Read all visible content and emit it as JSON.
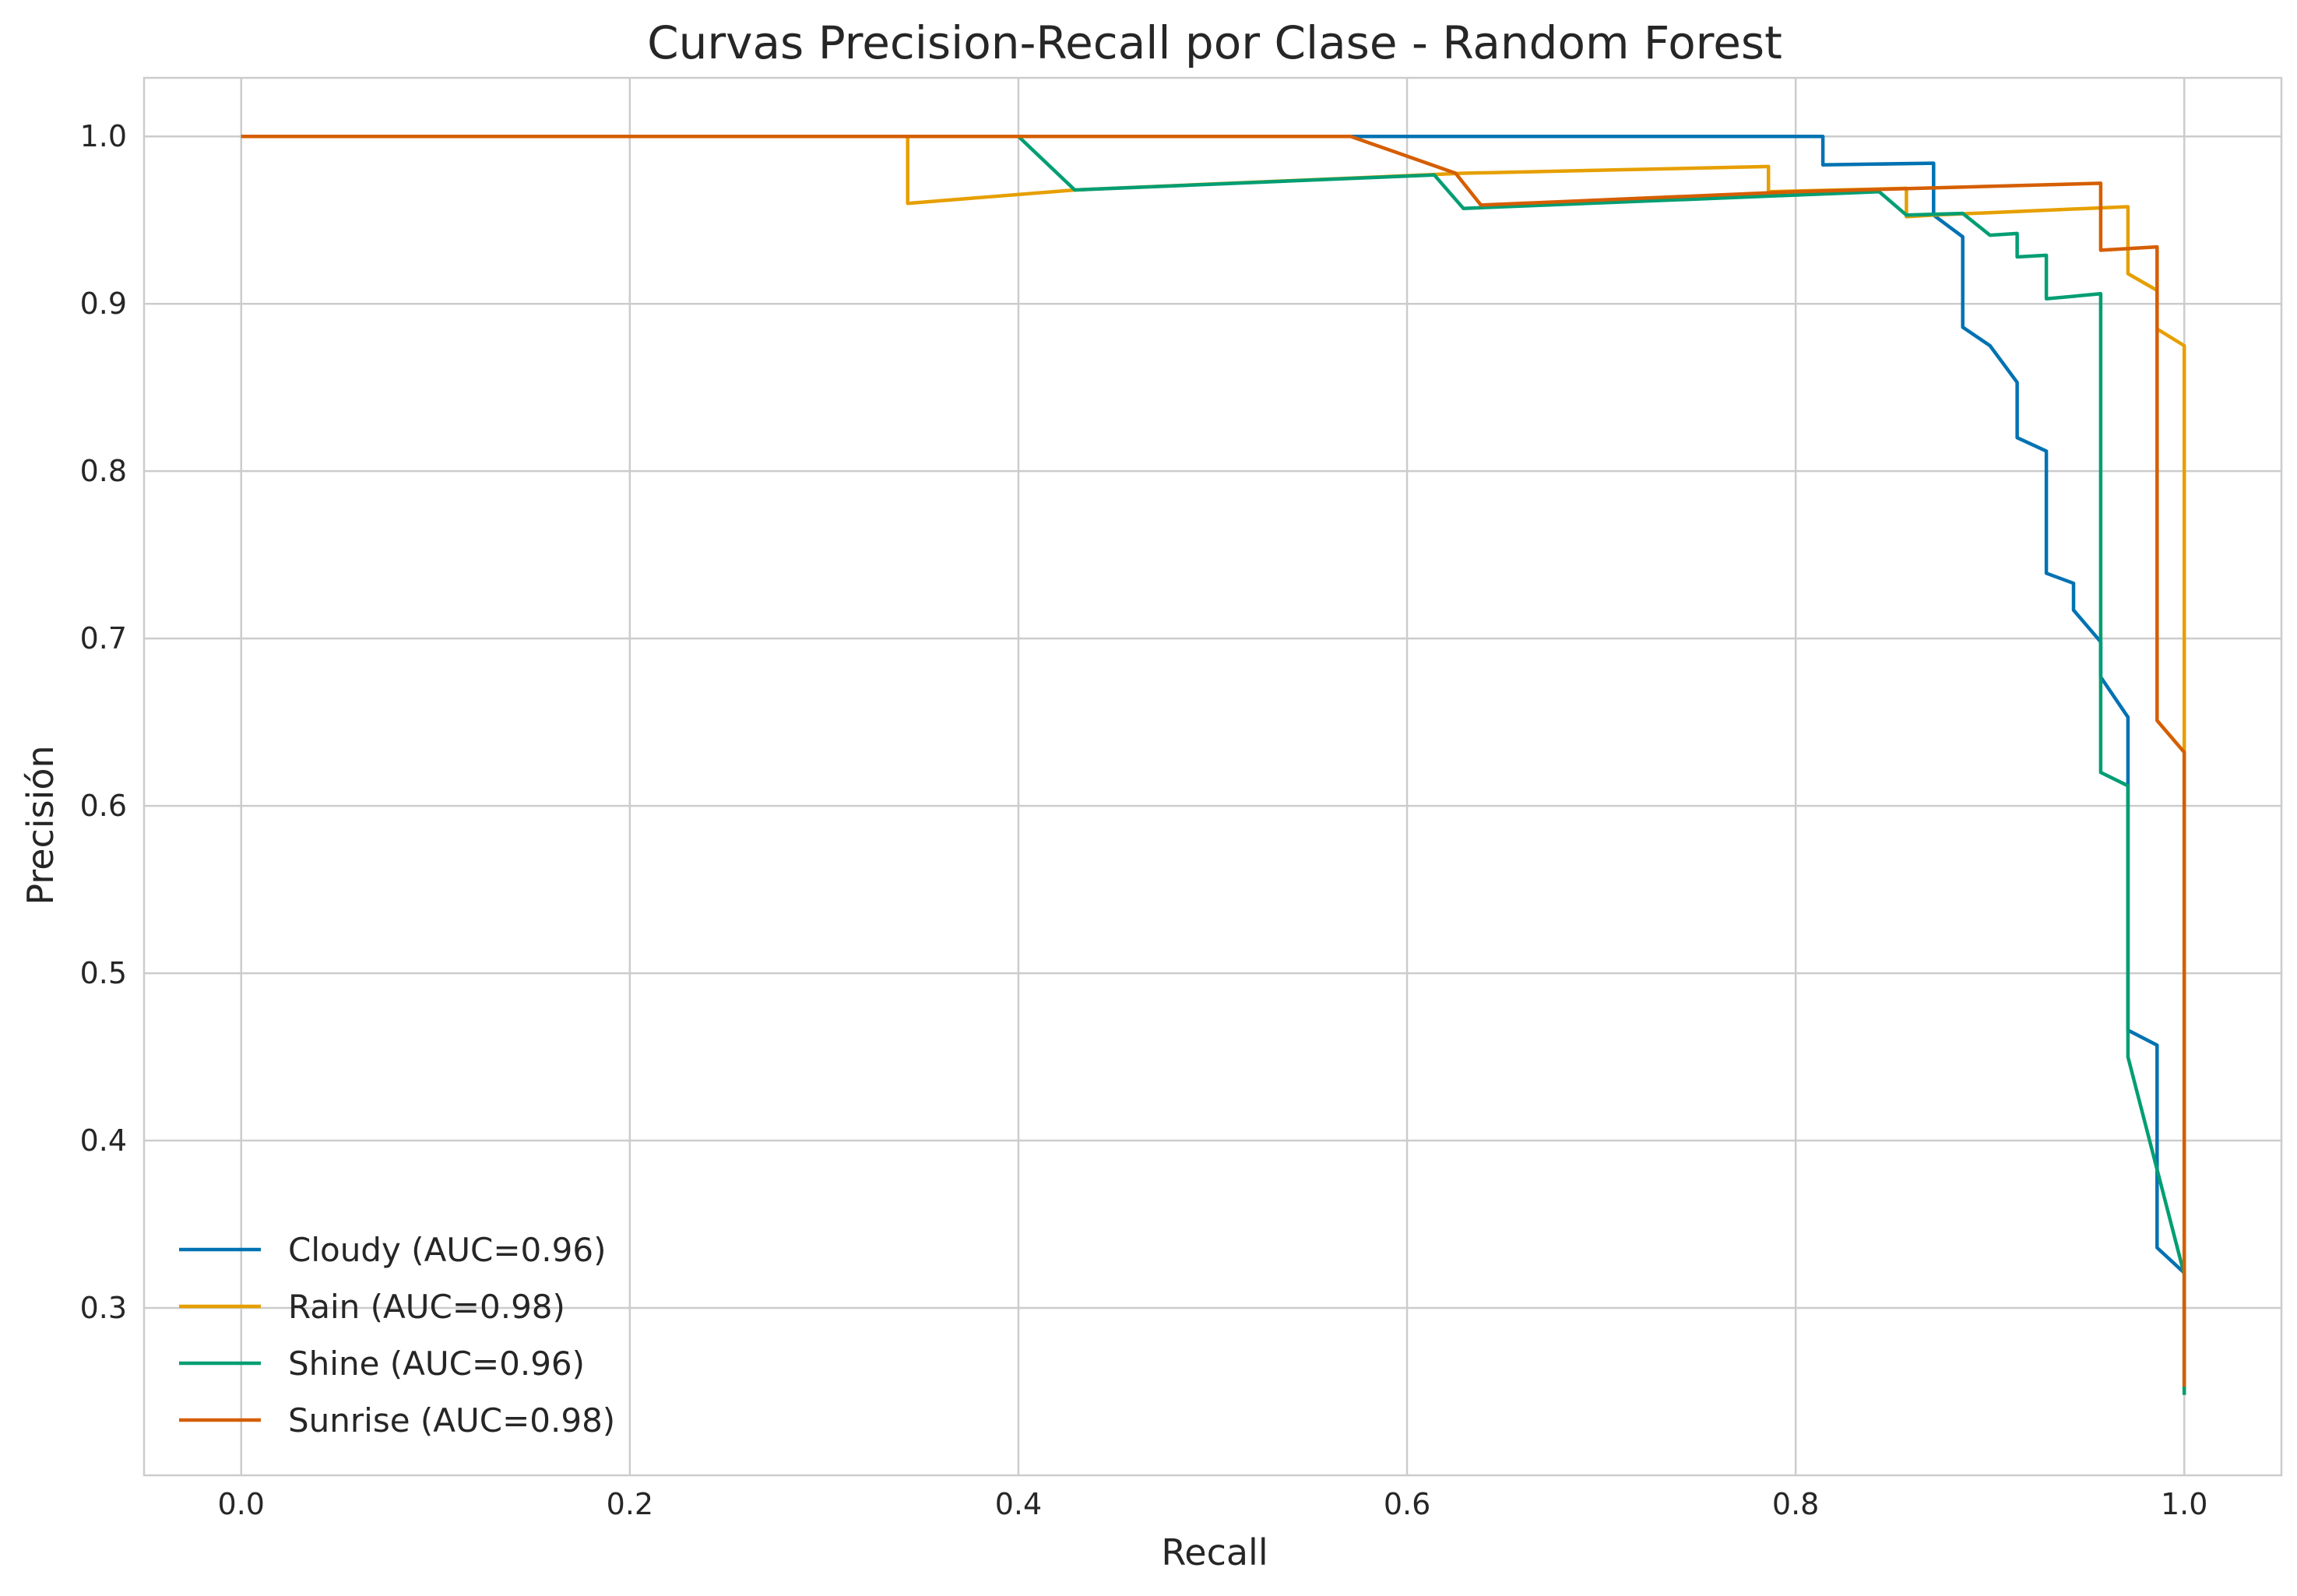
{
  "chart_data": {
    "type": "line",
    "title": "Curvas Precision-Recall por Clase - Random Forest",
    "xlabel": "Recall",
    "ylabel": "Precisión",
    "xlim": [
      -0.05,
      1.05
    ],
    "ylim": [
      0.2,
      1.035
    ],
    "xticks": [
      0.0,
      0.2,
      0.4,
      0.6,
      0.8,
      1.0
    ],
    "xtick_labels": [
      "0.0",
      "0.2",
      "0.4",
      "0.6",
      "0.8",
      "1.0"
    ],
    "yticks": [
      0.3,
      0.4,
      0.5,
      0.6,
      0.7,
      0.8,
      0.9,
      1.0
    ],
    "ytick_labels": [
      "0.3",
      "0.4",
      "0.5",
      "0.6",
      "0.7",
      "0.8",
      "0.9",
      "1.0"
    ],
    "grid": true,
    "legend_position": "lower-left",
    "series": [
      {
        "name": "Cloudy (AUC=0.96)",
        "color": "#0072b2",
        "points": [
          [
            0.0,
            1.0
          ],
          [
            0.814,
            1.0
          ],
          [
            0.814,
            0.983
          ],
          [
            0.871,
            0.984
          ],
          [
            0.871,
            0.953
          ],
          [
            0.886,
            0.94
          ],
          [
            0.886,
            0.886
          ],
          [
            0.9,
            0.875
          ],
          [
            0.914,
            0.853
          ],
          [
            0.914,
            0.82
          ],
          [
            0.929,
            0.812
          ],
          [
            0.929,
            0.739
          ],
          [
            0.943,
            0.733
          ],
          [
            0.943,
            0.717
          ],
          [
            0.957,
            0.698
          ],
          [
            0.957,
            0.677
          ],
          [
            0.971,
            0.653
          ],
          [
            0.971,
            0.466
          ],
          [
            0.986,
            0.457
          ],
          [
            0.986,
            0.336
          ],
          [
            1.0,
            0.321
          ],
          [
            1.0,
            0.25
          ]
        ]
      },
      {
        "name": "Rain (AUC=0.98)",
        "color": "#e69f00",
        "points": [
          [
            0.0,
            1.0
          ],
          [
            0.343,
            1.0
          ],
          [
            0.343,
            0.96
          ],
          [
            0.429,
            0.968
          ],
          [
            0.629,
            0.978
          ],
          [
            0.786,
            0.982
          ],
          [
            0.786,
            0.967
          ],
          [
            0.857,
            0.969
          ],
          [
            0.857,
            0.952
          ],
          [
            0.871,
            0.953
          ],
          [
            0.971,
            0.958
          ],
          [
            0.971,
            0.918
          ],
          [
            0.986,
            0.908
          ],
          [
            0.986,
            0.885
          ],
          [
            1.0,
            0.875
          ],
          [
            1.0,
            0.25
          ]
        ]
      },
      {
        "name": "Shine (AUC=0.96)",
        "color": "#009e73",
        "points": [
          [
            0.0,
            1.0
          ],
          [
            0.4,
            1.0
          ],
          [
            0.429,
            0.968
          ],
          [
            0.614,
            0.977
          ],
          [
            0.629,
            0.957
          ],
          [
            0.843,
            0.967
          ],
          [
            0.857,
            0.953
          ],
          [
            0.886,
            0.954
          ],
          [
            0.9,
            0.941
          ],
          [
            0.914,
            0.942
          ],
          [
            0.914,
            0.928
          ],
          [
            0.929,
            0.929
          ],
          [
            0.929,
            0.903
          ],
          [
            0.957,
            0.906
          ],
          [
            0.957,
            0.62
          ],
          [
            0.971,
            0.612
          ],
          [
            0.971,
            0.45
          ],
          [
            1.0,
            0.32
          ],
          [
            1.0,
            0.248
          ]
        ]
      },
      {
        "name": "Sunrise (AUC=0.98)",
        "color": "#d55e00",
        "points": [
          [
            0.0,
            1.0
          ],
          [
            0.571,
            1.0
          ],
          [
            0.625,
            0.978
          ],
          [
            0.638,
            0.959
          ],
          [
            0.8,
            0.967
          ],
          [
            0.957,
            0.972
          ],
          [
            0.957,
            0.932
          ],
          [
            0.986,
            0.934
          ],
          [
            0.986,
            0.651
          ],
          [
            1.0,
            0.632
          ],
          [
            1.0,
            0.253
          ]
        ]
      }
    ]
  }
}
